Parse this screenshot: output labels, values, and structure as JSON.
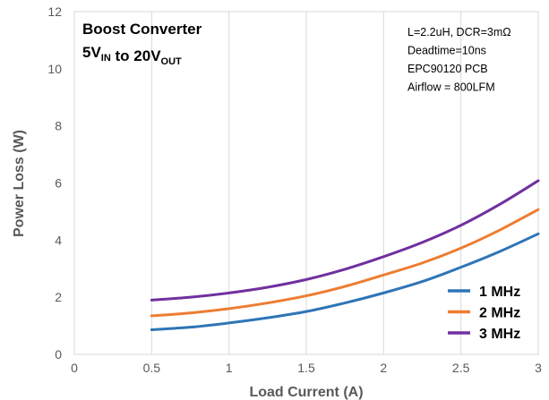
{
  "chart_data": {
    "type": "line",
    "title": {
      "line1": "Boost Converter",
      "line2_parts": [
        {
          "text": "5V",
          "sub": false
        },
        {
          "text": "IN",
          "sub": true
        },
        {
          "text": " to 20V",
          "sub": false
        },
        {
          "text": "OUT",
          "sub": true
        }
      ]
    },
    "annotations": [
      "L=2.2uH, DCR=3mΩ",
      "Deadtime=10ns",
      "EPC90120 PCB",
      "Airflow = 800LFM"
    ],
    "xlabel": "Load Current (A)",
    "ylabel": "Power Loss (W)",
    "xlim": [
      0,
      3
    ],
    "ylim": [
      0,
      12
    ],
    "xticks": [
      0,
      0.5,
      1,
      1.5,
      2,
      2.5,
      3
    ],
    "xtick_labels": [
      "0",
      "0.5",
      "1",
      "1.5",
      "2",
      "2.5",
      "3"
    ],
    "yticks": [
      0,
      2,
      4,
      6,
      8,
      10,
      12
    ],
    "ytick_labels": [
      "0",
      "2",
      "4",
      "6",
      "8",
      "10",
      "12"
    ],
    "grid": "vertical",
    "legend_position": "bottom-right",
    "x": [
      0.5,
      0.75,
      1.0,
      1.25,
      1.5,
      1.75,
      2.0,
      2.25,
      2.5,
      2.75,
      3.0
    ],
    "series": [
      {
        "name": "1 MHz",
        "color": "#2E75B6",
        "values": [
          0.86,
          0.95,
          1.1,
          1.28,
          1.5,
          1.8,
          2.15,
          2.55,
          3.05,
          3.6,
          4.22
        ]
      },
      {
        "name": "2 MHz",
        "color": "#ED7D31",
        "values": [
          1.35,
          1.45,
          1.6,
          1.8,
          2.05,
          2.38,
          2.78,
          3.2,
          3.72,
          4.35,
          5.07
        ]
      },
      {
        "name": "3 MHz",
        "color": "#7030A0",
        "values": [
          1.9,
          2.0,
          2.15,
          2.35,
          2.62,
          2.98,
          3.42,
          3.92,
          4.52,
          5.25,
          6.08
        ]
      }
    ]
  }
}
